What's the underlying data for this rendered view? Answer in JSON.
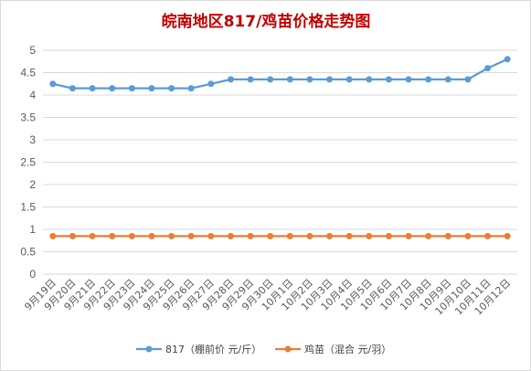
{
  "chart_data": {
    "type": "line",
    "title": "皖南地区817/鸡苗价格走势图",
    "xlabel": "",
    "ylabel": "",
    "categories": [
      "9月19日",
      "9月20日",
      "9月21日",
      "9月22日",
      "9月23日",
      "9月24日",
      "9月25日",
      "9月26日",
      "9月27日",
      "9月28日",
      "9月29日",
      "9月30日",
      "10月1日",
      "10月2日",
      "10月3日",
      "10月4日",
      "10月5日",
      "10月6日",
      "10月7日",
      "10月8日",
      "10月9日",
      "10月10日",
      "10月11日",
      "10月12日"
    ],
    "yticks": [
      "0",
      "0.5",
      "1",
      "1.5",
      "2",
      "2.5",
      "3",
      "3.5",
      "4",
      "4.5",
      "5"
    ],
    "ylim": [
      0,
      5
    ],
    "grid": true,
    "legend_position": "bottom",
    "series": [
      {
        "name": "817（棚前价 元/斤）",
        "color": "#5b9bd5",
        "values": [
          4.25,
          4.15,
          4.15,
          4.15,
          4.15,
          4.15,
          4.15,
          4.15,
          4.25,
          4.35,
          4.35,
          4.35,
          4.35,
          4.35,
          4.35,
          4.35,
          4.35,
          4.35,
          4.35,
          4.35,
          4.35,
          4.35,
          4.6,
          4.8
        ]
      },
      {
        "name": "鸡苗（混合 元/羽）",
        "color": "#ed7d31",
        "values": [
          0.85,
          0.85,
          0.85,
          0.85,
          0.85,
          0.85,
          0.85,
          0.85,
          0.85,
          0.85,
          0.85,
          0.85,
          0.85,
          0.85,
          0.85,
          0.85,
          0.85,
          0.85,
          0.85,
          0.85,
          0.85,
          0.85,
          0.85,
          0.85
        ]
      }
    ]
  }
}
